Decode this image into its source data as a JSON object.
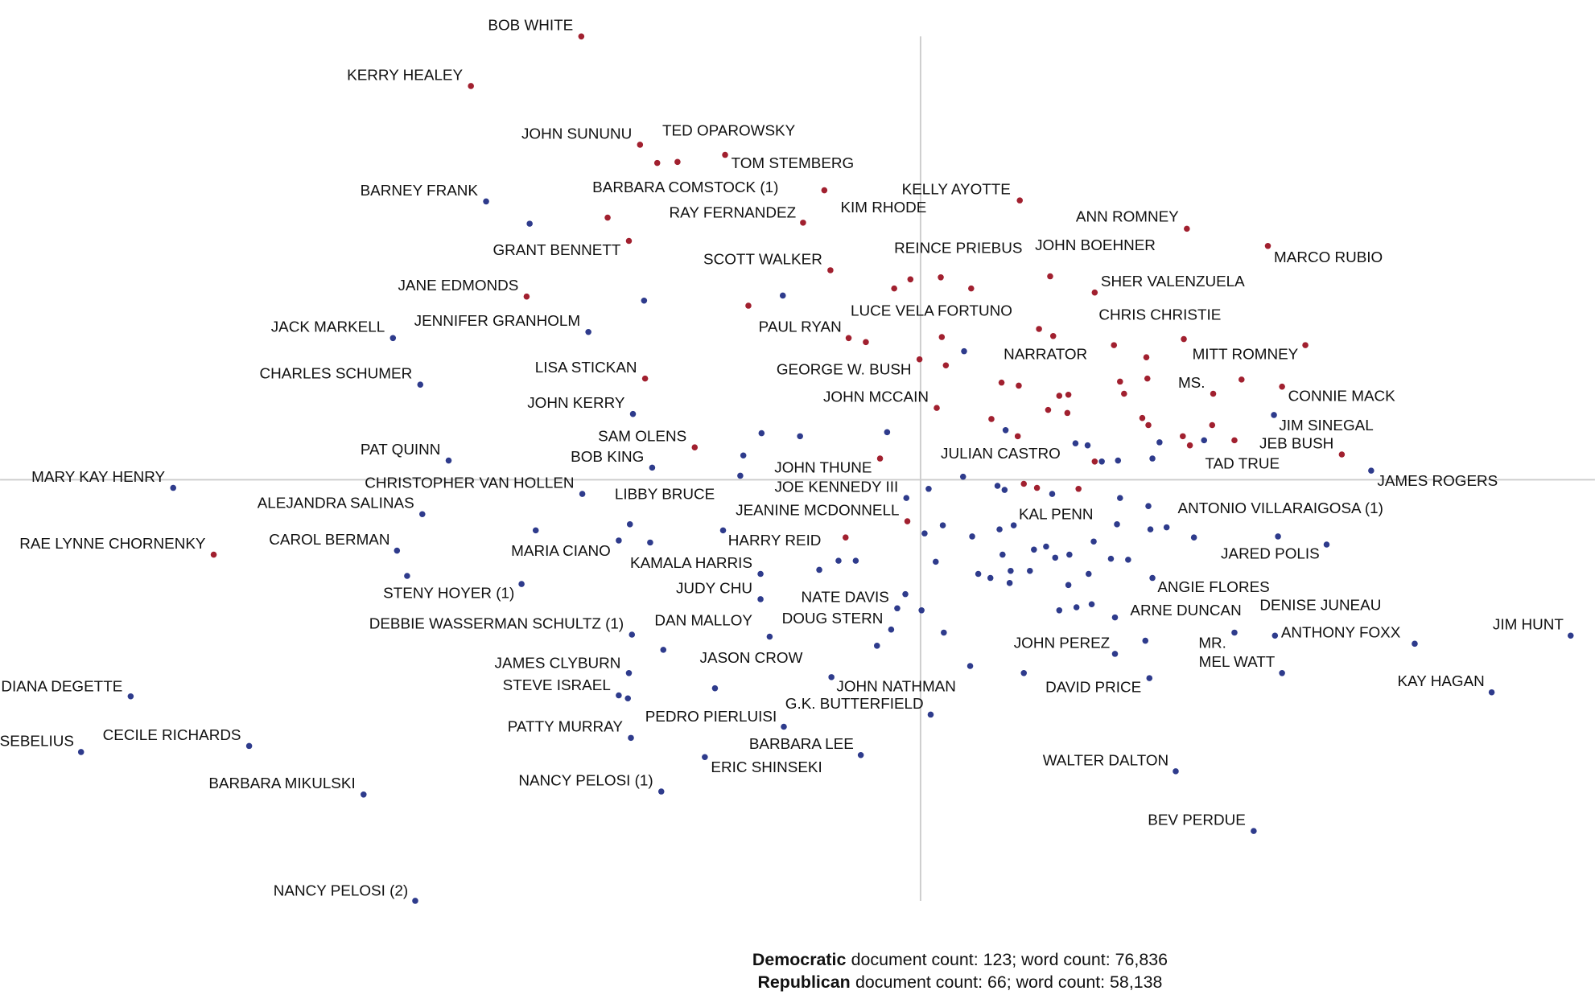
{
  "chart_data": {
    "type": "scatter",
    "xlim": [
      -909,
      666
    ],
    "ylim": [
      -513,
      474
    ],
    "series": [
      {
        "name": "Democratic",
        "color": "#2e3b8c",
        "x": [
          -429,
          -386,
          -273,
          -136,
          43,
          -521,
          -328,
          -494,
          -284,
          349,
          -157,
          -119,
          -33,
          84,
          153,
          165,
          236,
          280,
          -175,
          179,
          195,
          229,
          -466,
          -265,
          -738,
          42,
          445,
          -334,
          -178,
          8,
          76,
          83,
          130,
          197,
          225,
          -287,
          -14,
          -492,
          4,
          243,
          92,
          -380,
          22,
          51,
          78,
          194,
          227,
          270,
          353,
          -298,
          -267,
          -195,
          401,
          -517,
          81,
          112,
          124,
          133,
          147,
          171,
          188,
          205,
          -81,
          -64,
          15,
          -100,
          57,
          69,
          89,
          108,
          88,
          166,
          146,
          137,
          154,
          169,
          -15,
          1,
          -158,
          -394,
          -507,
          229,
          -158,
          -23,
          192,
          -29,
          -285,
          -149,
          350,
          310,
          488,
          642,
          192,
          222,
          23,
          -43,
          -254,
          -288,
          -203,
          357,
          49,
          102,
          -88,
          226,
          564,
          -298,
          -289,
          -780,
          10,
          -135,
          -286,
          -663,
          -829,
          -59,
          -213,
          252,
          -550,
          -256,
          329,
          -499
        ],
        "y": [
          275,
          253,
          177,
          182,
          127,
          140,
          146,
          94,
          65,
          64,
          46,
          43,
          47,
          49,
          36,
          34,
          37,
          39,
          24,
          18,
          19,
          21,
          19,
          12,
          -8,
          3,
          9,
          -14,
          4,
          -9,
          -6,
          -10,
          -14,
          -18,
          -26,
          -44,
          -18,
          -34,
          -53,
          -47,
          -45,
          -50,
          -45,
          -56,
          -49,
          -44,
          -49,
          -57,
          -56,
          -60,
          -62,
          -50,
          -64,
          -70,
          -74,
          -69,
          -66,
          -77,
          -74,
          -61,
          -78,
          -79,
          -80,
          -80,
          -81,
          -89,
          -93,
          -97,
          -90,
          -90,
          -102,
          -93,
          -104,
          -129,
          -126,
          -123,
          -113,
          -129,
          -93,
          -103,
          -95,
          -97,
          -118,
          -127,
          -136,
          -148,
          -153,
          -155,
          -154,
          -151,
          -162,
          -154,
          -172,
          -159,
          -151,
          -164,
          -168,
          -191,
          -206,
          -191,
          -184,
          -191,
          -195,
          -196,
          -210,
          -213,
          -216,
          -214,
          -232,
          -244,
          -255,
          -263,
          -269,
          -272,
          -274,
          -288,
          -311,
          -308,
          -347,
          -416
        ],
        "labels": [
          "BARNEY FRANK",
          null,
          null,
          null,
          null,
          "JACK MARKELL",
          "JENNIFER GRANHOLM",
          "CHARLES SCHUMER",
          "JOHN KERRY",
          "JIM SINEGAL",
          null,
          null,
          null,
          null,
          null,
          null,
          null,
          null,
          null,
          null,
          null,
          null,
          "PAT QUINN",
          "BOB KING",
          "MARY KAY HENRY",
          "JULIAN CASTRO",
          "JAMES ROGERS",
          "CHRISTOPHER VAN HOLLEN",
          null,
          null,
          null,
          null,
          null,
          null,
          null,
          "LIBBY BRUCE",
          "JOE KENNEDY III",
          "ALEJANDRA SALINAS",
          "JEANINE MCDONNELL",
          "ANTONIO VILLARAIGOSA (1)",
          "KAL PENN",
          null,
          null,
          null,
          null,
          null,
          null,
          null,
          null,
          "MARIA CIANO",
          null,
          "HARRY REID",
          "JARED POLIS",
          "CAROL BERMAN",
          null,
          null,
          null,
          null,
          null,
          null,
          null,
          null,
          null,
          null,
          null,
          null,
          null,
          null,
          null,
          null,
          null,
          null,
          null,
          null,
          null,
          null,
          null,
          null,
          "KAMALA HARRIS",
          "STENY HOYER (1)",
          null,
          "ANGIE FLORES",
          "JUDY CHU",
          "NATE DAVIS",
          "ARNE DUNCAN",
          "DOUG STERN",
          "DEBBIE WASSERMAN SCHULTZ (1)",
          "DAN MALLOY",
          "ANTHONY FOXX",
          "MR.",
          "DENISE JUNEAU",
          "JIM HUNT",
          "JOHN PEREZ",
          null,
          null,
          null,
          null,
          "JAMES CLYBURN",
          "JASON CROW",
          "MEL WATT",
          null,
          null,
          "JOHN NATHMAN",
          "DAVID PRICE",
          "KAY HAGAN",
          "STEVE ISRAEL",
          null,
          "DIANA DEGETTE",
          "G.K. BUTTERFIELD",
          "PEDRO PIERLUISI",
          "PATTY MURRAY",
          "CECILE RICHARDS",
          "KATHLEEN SEBELIUS",
          "BARBARA LEE",
          "ERIC SHINSEKI",
          "WALTER DALTON",
          "BARBARA MIKULSKI",
          "NANCY PELOSI (1)",
          "BEV PERDUE",
          "NANCY PELOSI (2)"
        ]
      },
      {
        "name": "Republican",
        "color": "#a1202f",
        "x": [
          -335,
          -444,
          -277,
          -260,
          -240,
          -193,
          -309,
          -95,
          -116,
          98,
          263,
          343,
          -288,
          -89,
          20,
          128,
          172,
          -389,
          -10,
          -26,
          50,
          -170,
          21,
          -71,
          -54,
          260,
          131,
          117,
          191,
          223,
          380,
          -272,
          -1,
          25,
          289,
          357,
          317,
          80,
          97,
          197,
          224,
          137,
          146,
          201,
          126,
          145,
          70,
          96,
          219,
          225,
          288,
          259,
          266,
          310,
          16,
          -223,
          416,
          -40,
          172,
          102,
          115,
          156,
          -13,
          -74,
          -698
        ],
        "y": [
          438,
          389,
          331,
          313,
          314,
          321,
          259,
          286,
          254,
          276,
          248,
          231,
          236,
          207,
          200,
          201,
          185,
          181,
          198,
          189,
          189,
          172,
          141,
          140,
          136,
          139,
          142,
          149,
          133,
          121,
          133,
          100,
          119,
          113,
          85,
          92,
          99,
          96,
          93,
          97,
          100,
          83,
          84,
          85,
          69,
          66,
          60,
          43,
          61,
          54,
          54,
          43,
          34,
          39,
          71,
          32,
          25,
          21,
          18,
          -4,
          -8,
          -9,
          -41,
          -57,
          -74
        ],
        "labels": [
          "BOB WHITE",
          "KERRY HEALEY",
          "JOHN SUNUNU",
          null,
          "TED OPAROWSKY",
          "TOM STEMBERG",
          "BARBARA COMSTOCK (1)",
          "KIM RHODE",
          "RAY FERNANDEZ",
          "KELLY AYOTTE",
          "ANN ROMNEY",
          "MARCO RUBIO",
          "GRANT BENNETT",
          "SCOTT WALKER",
          "REINCE PRIEBUS",
          "JOHN BOEHNER",
          "SHER VALENZUELA",
          "JANE EDMONDS",
          null,
          null,
          null,
          null,
          "LUCE VELA FORTUNO",
          "PAUL RYAN",
          null,
          "CHRIS CHRISTIE",
          "NARRATOR",
          null,
          null,
          null,
          "MITT ROMNEY",
          "LISA STICKAN",
          "GEORGE W. BUSH",
          null,
          "MS.",
          "CONNIE MACK",
          null,
          null,
          null,
          null,
          null,
          null,
          null,
          null,
          null,
          null,
          null,
          null,
          null,
          null,
          null,
          null,
          "TAD TRUE",
          null,
          "JOHN MCCAIN",
          "SAM OLENS",
          "JEB BUSH",
          "JOHN THUNE",
          null,
          null,
          null,
          null,
          null,
          null,
          "RAE LYNNE CHORNENKY"
        ]
      }
    ],
    "notes": [
      "document count: 123; word count: 76,836",
      "document count: 66; word count: 58,138"
    ]
  }
}
